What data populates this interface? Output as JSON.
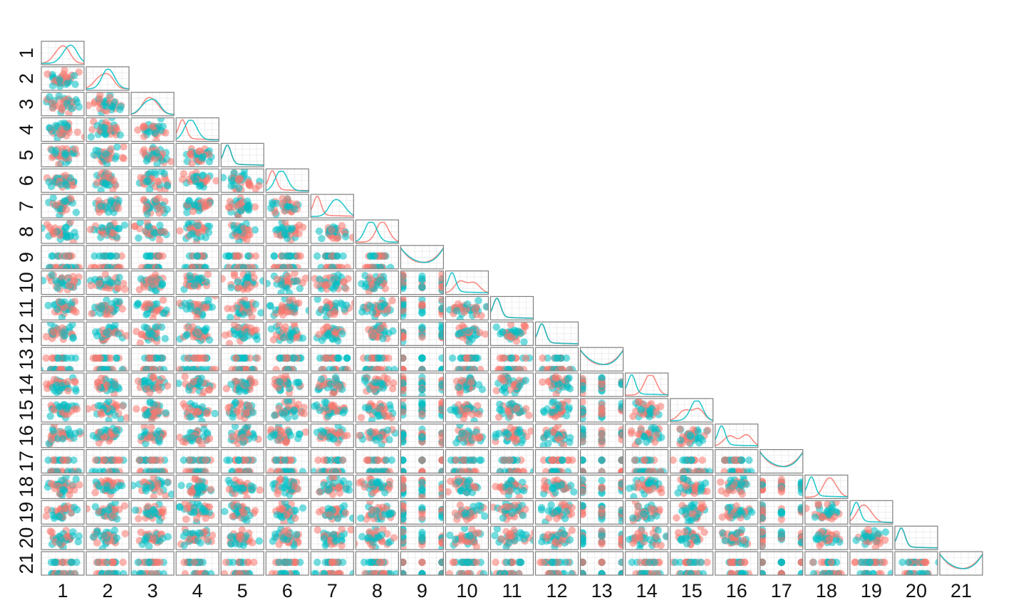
{
  "chart_data": {
    "type": "scatter",
    "subtype": "pairs-plot-lower-triangle",
    "title": "",
    "variables": [
      "1",
      "2",
      "3",
      "4",
      "5",
      "6",
      "7",
      "8",
      "9",
      "10",
      "11",
      "12",
      "13",
      "14",
      "15",
      "16",
      "17",
      "18",
      "19",
      "20",
      "21"
    ],
    "column_labels": [
      "1",
      "2",
      "3",
      "4",
      "5",
      "6",
      "7",
      "8",
      "9",
      "10",
      "11",
      "12",
      "13",
      "14",
      "15",
      "16",
      "17",
      "18",
      "19",
      "20",
      "21"
    ],
    "row_labels": [
      "1",
      "2",
      "3",
      "4",
      "5",
      "6",
      "7",
      "8",
      "9",
      "10",
      "11",
      "12",
      "13",
      "14",
      "15",
      "16",
      "17",
      "18",
      "19",
      "20",
      "21"
    ],
    "binary_variables": [
      "9",
      "13",
      "17",
      "21"
    ],
    "diagonal": "density",
    "off_diagonal": "scatter",
    "groups": [
      {
        "color": "#F8766D"
      },
      {
        "color": "#00BFC4"
      }
    ],
    "grid": true,
    "legend": "none"
  }
}
